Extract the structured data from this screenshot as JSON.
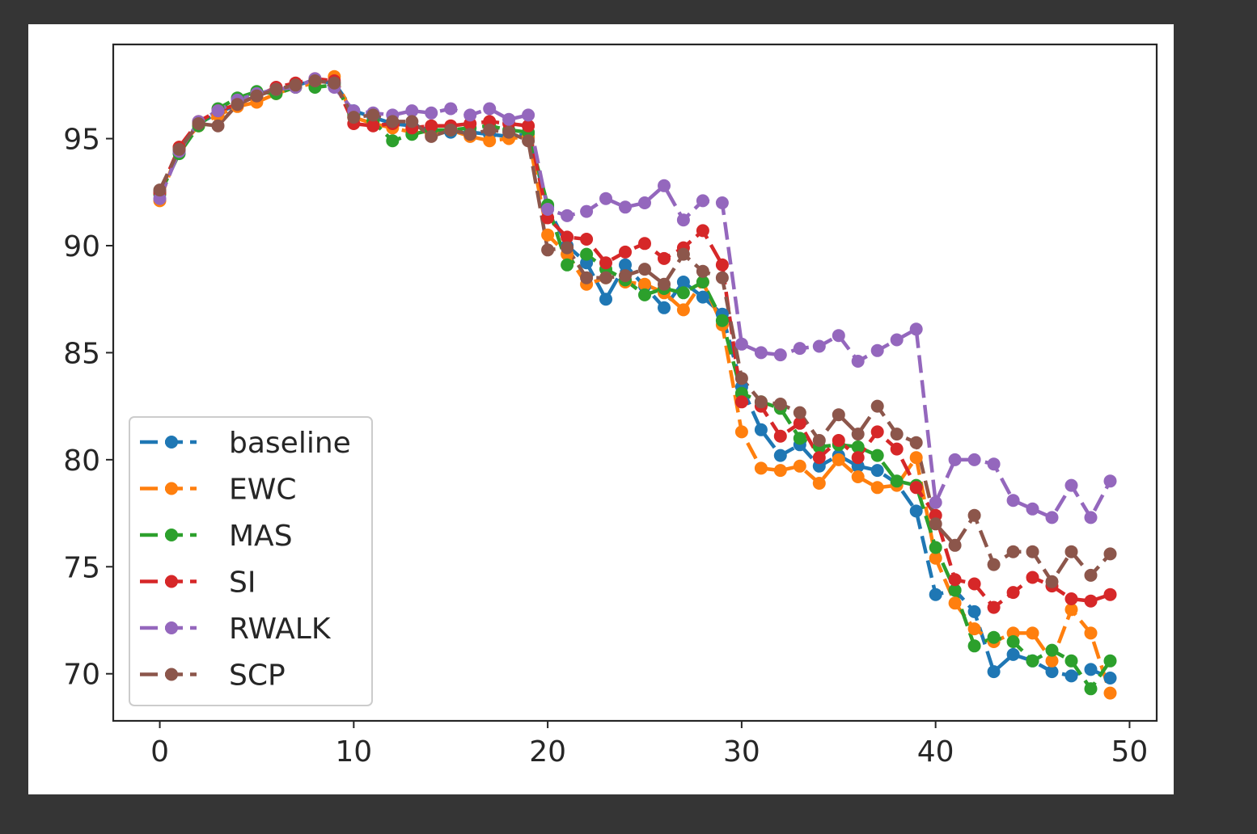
{
  "chart_data": {
    "type": "line",
    "title": "",
    "xlabel": "",
    "ylabel": "",
    "xlim": [
      -2.4,
      51.4
    ],
    "ylim": [
      67.8,
      99.4
    ],
    "xticks": [
      0,
      10,
      20,
      30,
      40,
      50
    ],
    "yticks": [
      70,
      75,
      80,
      85,
      90,
      95
    ],
    "grid": false,
    "legend_position": "lower-left",
    "line_style": "dashed",
    "marker": "circle",
    "x": [
      0,
      1,
      2,
      3,
      4,
      5,
      6,
      7,
      8,
      9,
      10,
      11,
      12,
      13,
      14,
      15,
      16,
      17,
      18,
      19,
      20,
      21,
      22,
      23,
      24,
      25,
      26,
      27,
      28,
      29,
      30,
      31,
      32,
      33,
      34,
      35,
      36,
      37,
      38,
      39,
      40,
      41,
      42,
      43,
      44,
      45,
      46,
      47,
      48,
      49
    ],
    "series": [
      {
        "name": "baseline",
        "color": "#1f77b4",
        "values": [
          92.5,
          94.5,
          95.7,
          96.2,
          96.6,
          97.0,
          97.3,
          97.5,
          97.7,
          97.6,
          96.3,
          96.0,
          95.7,
          95.6,
          95.4,
          95.3,
          95.3,
          95.2,
          95.1,
          95.2,
          91.8,
          90.0,
          89.2,
          87.5,
          89.1,
          88.1,
          87.1,
          88.3,
          87.6,
          86.8,
          83.4,
          81.4,
          80.2,
          80.7,
          79.7,
          80.2,
          79.7,
          79.5,
          78.9,
          77.6,
          73.7,
          73.9,
          72.9,
          70.1,
          70.9,
          70.6,
          70.1,
          69.9,
          70.2,
          69.8
        ]
      },
      {
        "name": "EWC",
        "color": "#ff7f0e",
        "values": [
          92.1,
          94.6,
          95.6,
          96.1,
          96.5,
          96.7,
          97.1,
          97.4,
          97.6,
          97.9,
          96.0,
          95.7,
          95.5,
          95.3,
          95.2,
          95.4,
          95.1,
          94.9,
          95.0,
          95.1,
          90.5,
          89.6,
          88.2,
          88.5,
          88.3,
          88.2,
          87.8,
          87.0,
          88.3,
          86.3,
          81.3,
          79.6,
          79.5,
          79.7,
          78.9,
          80.0,
          79.2,
          78.7,
          78.8,
          80.1,
          75.4,
          73.3,
          72.1,
          71.5,
          71.9,
          71.9,
          70.6,
          73.0,
          71.9,
          69.1
        ]
      },
      {
        "name": "MAS",
        "color": "#2ca02c",
        "values": [
          92.4,
          94.3,
          95.6,
          96.4,
          96.9,
          97.2,
          97.1,
          97.4,
          97.4,
          97.5,
          96.1,
          95.8,
          94.9,
          95.2,
          95.4,
          95.4,
          95.5,
          95.6,
          95.4,
          95.3,
          91.9,
          89.1,
          89.6,
          88.9,
          88.4,
          87.7,
          88.0,
          87.8,
          88.3,
          86.5,
          83.1,
          82.7,
          82.4,
          81.0,
          80.6,
          80.7,
          80.6,
          80.2,
          79.0,
          78.8,
          75.9,
          73.9,
          71.3,
          71.7,
          71.5,
          70.6,
          71.1,
          70.6,
          69.3,
          70.6
        ]
      },
      {
        "name": "SI",
        "color": "#d62728",
        "values": [
          92.5,
          94.6,
          95.8,
          96.3,
          96.6,
          97.0,
          97.4,
          97.6,
          97.8,
          97.7,
          95.7,
          95.6,
          95.7,
          95.5,
          95.6,
          95.6,
          95.7,
          95.8,
          95.7,
          95.6,
          91.3,
          90.4,
          90.3,
          89.2,
          89.7,
          90.1,
          89.4,
          89.9,
          90.7,
          89.1,
          82.7,
          82.5,
          81.1,
          81.7,
          80.1,
          80.9,
          80.1,
          81.3,
          80.5,
          78.7,
          77.4,
          74.4,
          74.2,
          73.1,
          73.8,
          74.5,
          74.1,
          73.5,
          73.4,
          73.7
        ]
      },
      {
        "name": "RWALK",
        "color": "#9467bd",
        "values": [
          92.2,
          94.4,
          95.8,
          96.3,
          96.8,
          97.1,
          97.3,
          97.4,
          97.8,
          97.4,
          96.3,
          96.2,
          96.1,
          96.3,
          96.2,
          96.4,
          96.1,
          96.4,
          95.9,
          96.1,
          91.7,
          91.4,
          91.6,
          92.2,
          91.8,
          92.0,
          92.8,
          91.2,
          92.1,
          92.0,
          85.4,
          85.0,
          84.9,
          85.2,
          85.3,
          85.8,
          84.6,
          85.1,
          85.6,
          86.1,
          78.0,
          80.0,
          80.0,
          79.8,
          78.1,
          77.7,
          77.3,
          78.8,
          77.3,
          79.0
        ]
      },
      {
        "name": "SCP",
        "color": "#8c564b",
        "values": [
          92.6,
          94.5,
          95.7,
          95.6,
          96.6,
          97.0,
          97.3,
          97.5,
          97.7,
          97.6,
          96.0,
          96.1,
          95.8,
          95.8,
          95.1,
          95.4,
          95.2,
          95.4,
          95.3,
          94.9,
          89.8,
          89.9,
          88.5,
          88.5,
          88.6,
          88.9,
          88.2,
          89.6,
          88.8,
          88.5,
          83.8,
          82.7,
          82.6,
          82.2,
          80.9,
          82.1,
          81.2,
          82.5,
          81.2,
          80.8,
          77.0,
          76.0,
          77.4,
          75.1,
          75.7,
          75.7,
          74.3,
          75.7,
          74.6,
          75.6
        ]
      }
    ]
  }
}
